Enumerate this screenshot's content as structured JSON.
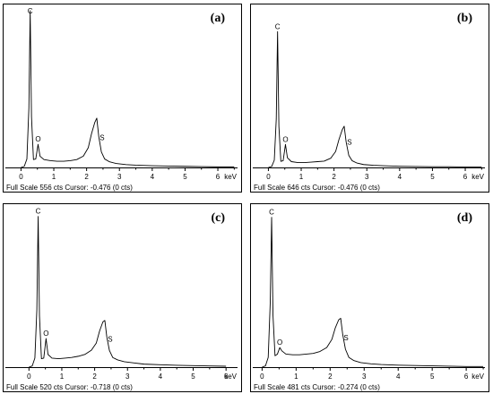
{
  "chart_data": [
    {
      "type": "line",
      "panel_label": "(a)",
      "xlabel": "keV",
      "x_ticks": [
        "0",
        "1",
        "2",
        "3",
        "4",
        "5",
        "6"
      ],
      "xlim": [
        -0.476,
        6.6
      ],
      "full_scale_cts": 556,
      "footer": "Full Scale 556 cts Cursor: -0.476  (0 cts)",
      "peaks": [
        {
          "label": "C",
          "x": 0.28,
          "y": 556
        },
        {
          "label": "O",
          "x": 0.52,
          "y": 82
        },
        {
          "label": "S",
          "x": 2.31,
          "y": 175
        }
      ],
      "series": [
        {
          "x": [
            0.0,
            0.1,
            0.18,
            0.24,
            0.28,
            0.32,
            0.38,
            0.45,
            0.52,
            0.58,
            0.7,
            0.9,
            1.1,
            1.3,
            1.5,
            1.7,
            1.9,
            2.05,
            2.15,
            2.25,
            2.31,
            2.37,
            2.45,
            2.55,
            2.7,
            2.9,
            3.2,
            3.5,
            4.0,
            4.5,
            5.0,
            5.5,
            6.0,
            6.5
          ],
          "y": [
            0,
            4,
            30,
            210,
            556,
            180,
            28,
            30,
            82,
            40,
            28,
            24,
            22,
            22,
            24,
            28,
            40,
            70,
            120,
            160,
            175,
            110,
            55,
            30,
            20,
            14,
            10,
            8,
            6,
            5,
            4,
            3,
            2,
            2
          ]
        }
      ]
    },
    {
      "type": "line",
      "panel_label": "(b)",
      "xlabel": "keV",
      "x_ticks": [
        "0",
        "1",
        "2",
        "3",
        "4",
        "5",
        "6"
      ],
      "xlim": [
        -0.476,
        6.6
      ],
      "full_scale_cts": 646,
      "footer": "Full Scale 646 cts Cursor: -0.476  (0 cts)",
      "peaks": [
        {
          "label": "C",
          "x": 0.28,
          "y": 560
        },
        {
          "label": "O",
          "x": 0.52,
          "y": 95
        },
        {
          "label": "S",
          "x": 2.31,
          "y": 170
        }
      ],
      "series": [
        {
          "x": [
            0.0,
            0.1,
            0.18,
            0.24,
            0.28,
            0.32,
            0.38,
            0.45,
            0.52,
            0.58,
            0.7,
            0.9,
            1.1,
            1.3,
            1.5,
            1.7,
            1.9,
            2.05,
            2.15,
            2.25,
            2.31,
            2.37,
            2.45,
            2.55,
            2.7,
            2.9,
            3.2,
            3.5,
            4.0,
            4.5,
            5.0,
            5.5,
            6.0,
            6.5
          ],
          "y": [
            0,
            4,
            30,
            200,
            560,
            170,
            25,
            28,
            95,
            40,
            24,
            20,
            20,
            22,
            24,
            26,
            38,
            66,
            115,
            155,
            170,
            105,
            50,
            28,
            18,
            12,
            9,
            7,
            5,
            4,
            3,
            3,
            2,
            2
          ]
        }
      ]
    },
    {
      "type": "line",
      "panel_label": "(c)",
      "xlabel": "keV",
      "x_ticks": [
        "0",
        "1",
        "2",
        "3",
        "4",
        "5",
        "6"
      ],
      "xlim": [
        -0.718,
        6.35
      ],
      "full_scale_cts": 520,
      "footer": "Full Scale 520 cts Cursor: -0.718  (0 cts)",
      "peaks": [
        {
          "label": "C",
          "x": 0.28,
          "y": 500
        },
        {
          "label": "O",
          "x": 0.52,
          "y": 95
        },
        {
          "label": "S",
          "x": 2.31,
          "y": 155
        }
      ],
      "series": [
        {
          "x": [
            0.0,
            0.1,
            0.18,
            0.24,
            0.28,
            0.32,
            0.38,
            0.45,
            0.52,
            0.58,
            0.7,
            0.9,
            1.1,
            1.3,
            1.5,
            1.7,
            1.9,
            2.05,
            2.15,
            2.25,
            2.31,
            2.37,
            2.45,
            2.55,
            2.7,
            2.9,
            3.2,
            3.5,
            4.0,
            4.5,
            5.0,
            5.5,
            6.0
          ],
          "y": [
            0,
            4,
            30,
            190,
            500,
            170,
            28,
            30,
            95,
            42,
            30,
            28,
            30,
            32,
            36,
            42,
            56,
            80,
            120,
            150,
            155,
            100,
            55,
            32,
            24,
            18,
            14,
            10,
            8,
            6,
            5,
            4,
            3
          ]
        }
      ]
    },
    {
      "type": "line",
      "panel_label": "(d)",
      "xlabel": "keV",
      "x_ticks": [
        "0",
        "1",
        "2",
        "3",
        "4",
        "5",
        "6"
      ],
      "xlim": [
        -0.274,
        6.55
      ],
      "full_scale_cts": 481,
      "footer": "Full Scale 481 cts Cursor: -0.274  (0 cts)",
      "peaks": [
        {
          "label": "C",
          "x": 0.28,
          "y": 460
        },
        {
          "label": "O",
          "x": 0.52,
          "y": 60
        },
        {
          "label": "S",
          "x": 2.31,
          "y": 150
        }
      ],
      "series": [
        {
          "x": [
            0.0,
            0.1,
            0.18,
            0.24,
            0.28,
            0.32,
            0.38,
            0.45,
            0.52,
            0.58,
            0.7,
            0.9,
            1.1,
            1.3,
            1.5,
            1.7,
            1.9,
            2.05,
            2.15,
            2.25,
            2.31,
            2.37,
            2.45,
            2.55,
            2.7,
            2.9,
            3.2,
            3.5,
            4.0,
            4.5,
            5.0,
            5.5,
            6.0,
            6.5
          ],
          "y": [
            0,
            4,
            30,
            200,
            460,
            160,
            35,
            40,
            60,
            50,
            40,
            38,
            38,
            40,
            42,
            48,
            60,
            85,
            120,
            145,
            150,
            100,
            55,
            30,
            20,
            14,
            10,
            8,
            6,
            5,
            4,
            3,
            2,
            2
          ]
        }
      ]
    }
  ]
}
